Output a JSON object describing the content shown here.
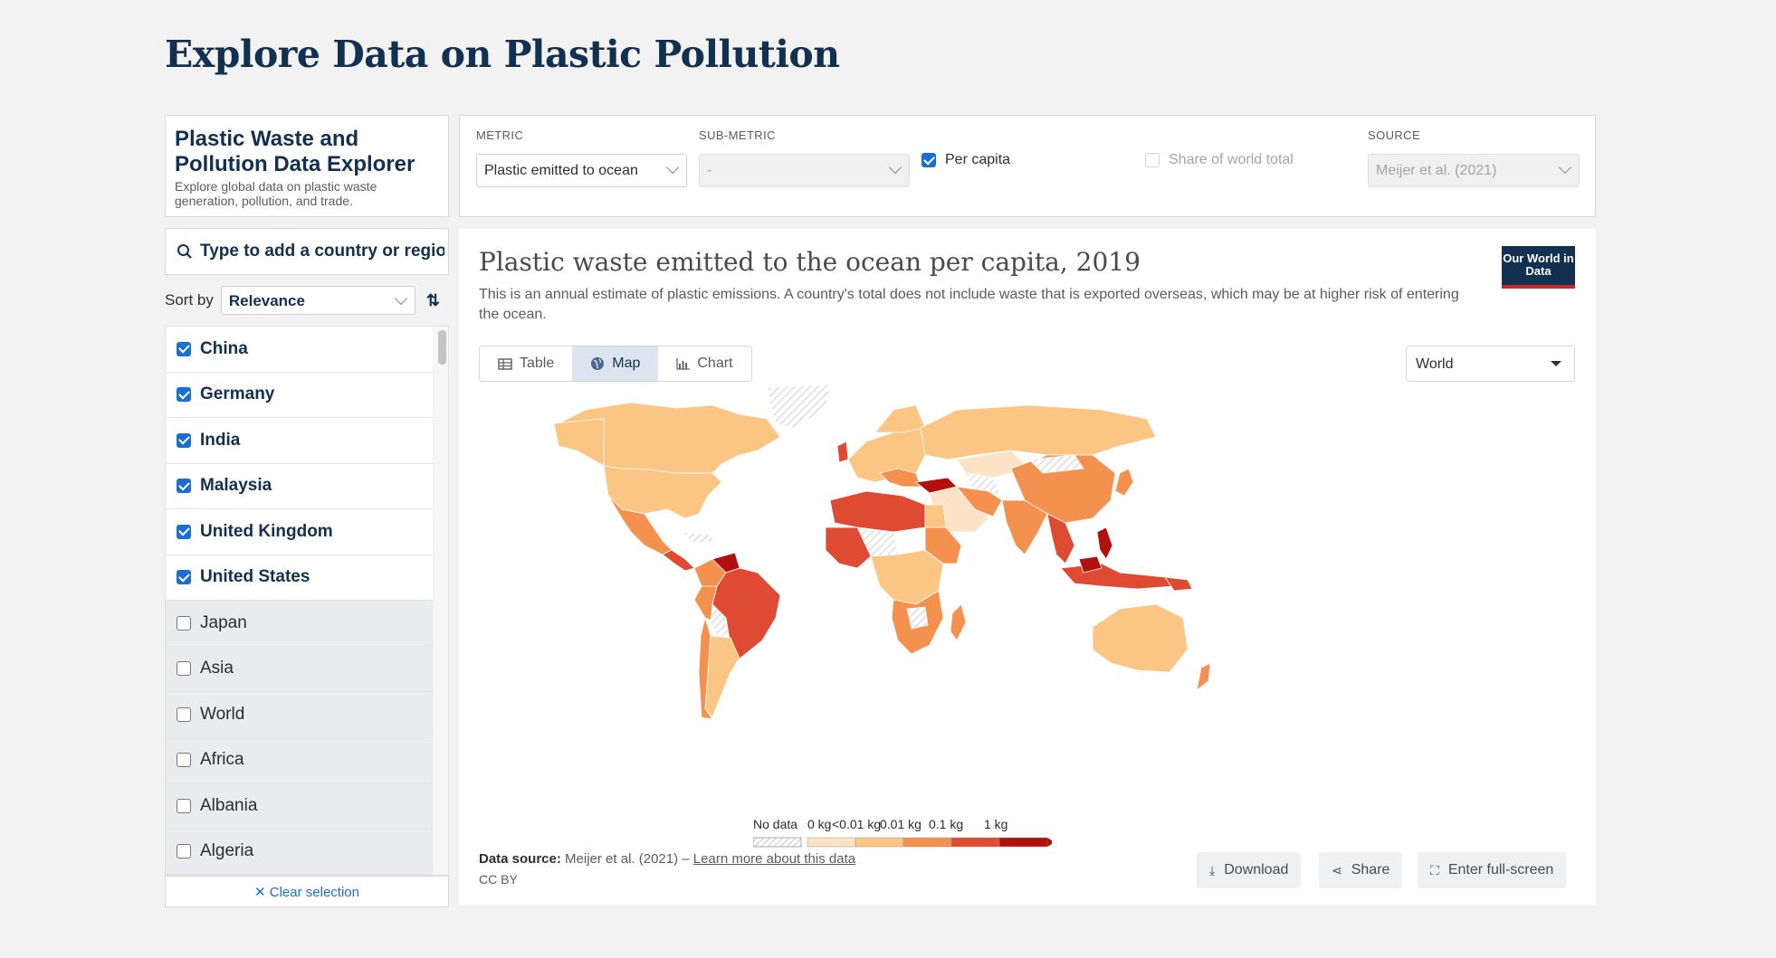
{
  "page": {
    "title": "Explore Data on Plastic Pollution"
  },
  "explorer": {
    "title": "Plastic Waste and Pollution Data Explorer",
    "subtitle": "Explore global data on plastic waste generation, pollution, and trade."
  },
  "controls": {
    "metric_label": "METRIC",
    "metric_value": "Plastic emitted to ocean",
    "submetric_label": "SUB-METRIC",
    "submetric_value": "-",
    "per_capita_label": "Per capita",
    "per_capita_checked": true,
    "share_label": "Share of world total",
    "share_checked": false,
    "source_label": "SOURCE",
    "source_value": "Meijer et al. (2021)"
  },
  "sidebar": {
    "search_placeholder": "Type to add a country or region...",
    "sort_label": "Sort by",
    "sort_value": "Relevance",
    "sort_icon": "sort-az-icon",
    "items": [
      {
        "label": "China",
        "checked": true
      },
      {
        "label": "Germany",
        "checked": true
      },
      {
        "label": "India",
        "checked": true
      },
      {
        "label": "Malaysia",
        "checked": true
      },
      {
        "label": "United Kingdom",
        "checked": true
      },
      {
        "label": "United States",
        "checked": true
      },
      {
        "label": "Japan",
        "checked": false
      },
      {
        "label": "Asia",
        "checked": false
      },
      {
        "label": "World",
        "checked": false
      },
      {
        "label": "Africa",
        "checked": false
      },
      {
        "label": "Albania",
        "checked": false
      },
      {
        "label": "Algeria",
        "checked": false
      }
    ],
    "clear_label": "✕ Clear selection"
  },
  "chart": {
    "title": "Plastic waste emitted to the ocean per capita, 2019",
    "subtitle": "This is an annual estimate of plastic emissions. A country's total does not include waste that is exported overseas, which may be at higher risk of entering the ocean.",
    "logo": "Our World in Data",
    "tabs": [
      {
        "label": "Table",
        "icon": "table-icon",
        "active": false
      },
      {
        "label": "Map",
        "icon": "globe-icon",
        "active": true
      },
      {
        "label": "Chart",
        "icon": "bar-chart-icon",
        "active": false
      }
    ],
    "region": "World",
    "legend": {
      "no_data": "No data",
      "bins": [
        "0 kg",
        "<0.01 kg",
        "0.01 kg",
        "0.1 kg",
        "1 kg"
      ],
      "colors": [
        "#fde3c6",
        "#fbc584",
        "#f4914e",
        "#de4a32",
        "#b20f0f"
      ]
    },
    "source_prefix": "Data source:",
    "source_text": "Meijer et al. (2021) –",
    "source_link": "Learn more about this data",
    "license": "CC BY",
    "actions": [
      {
        "label": "Download",
        "icon": "download-icon"
      },
      {
        "label": "Share",
        "icon": "share-icon"
      },
      {
        "label": "Enter full-screen",
        "icon": "fullscreen-icon"
      }
    ]
  }
}
